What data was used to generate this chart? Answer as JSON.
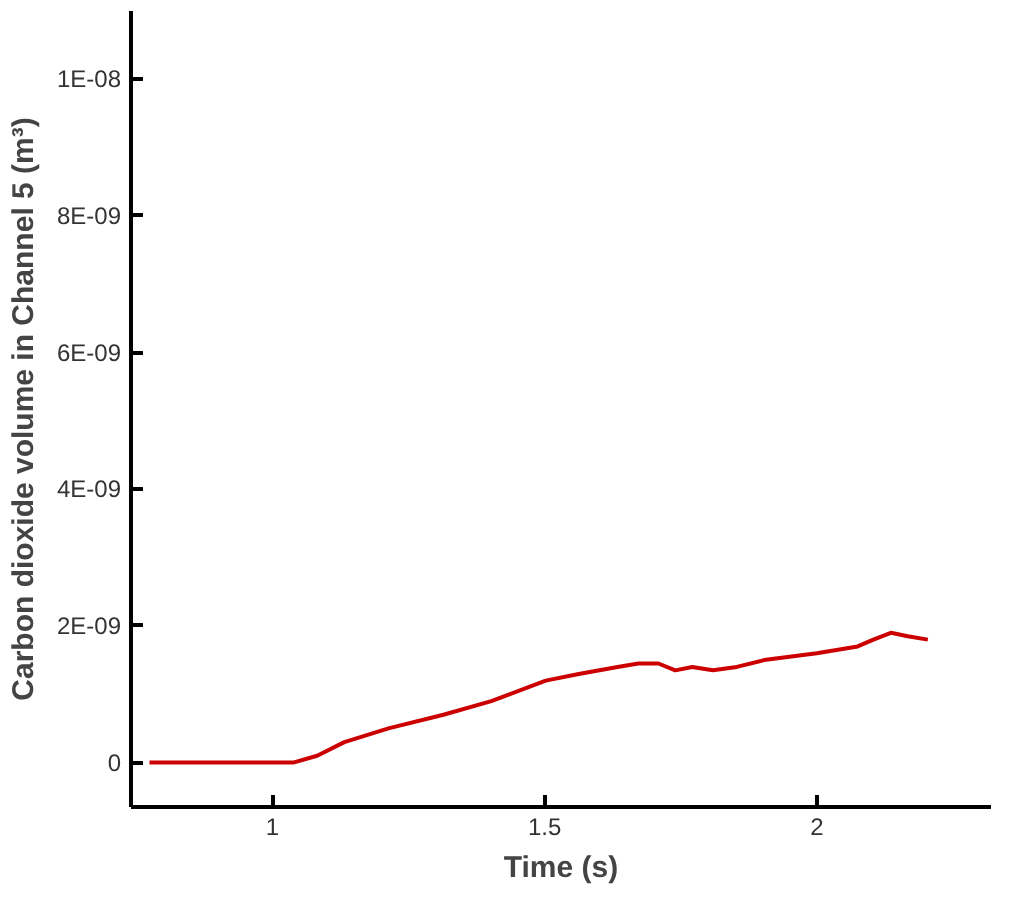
{
  "chart_data": {
    "type": "line",
    "xlabel": "Time (s)",
    "ylabel": "Carbon dioxide volume in Channel 5 (m³)",
    "xlim": [
      0.74,
      2.32
    ],
    "ylim": [
      -6.5e-10,
      1.1e-08
    ],
    "xticks": [
      1,
      1.5,
      2
    ],
    "yticks": [
      0,
      {
        "value": 2e-09,
        "label": "2E-09"
      },
      {
        "value": 4e-09,
        "label": "4E-09"
      },
      {
        "value": 6e-09,
        "label": "6E-09"
      },
      {
        "value": 8e-09,
        "label": "8E-09"
      },
      {
        "value": 1e-08,
        "label": "1E-08"
      }
    ],
    "grid": false,
    "marker": "none",
    "line_style": "solid",
    "series": [
      {
        "color": "#cc0000",
        "x": [
          0.774,
          1.0,
          1.038,
          1.082,
          1.132,
          1.213,
          1.314,
          1.402,
          1.502,
          1.565,
          1.634,
          1.672,
          1.709,
          1.74,
          1.771,
          1.809,
          1.853,
          1.903,
          2.0,
          2.075,
          2.104,
          2.136,
          2.167,
          2.204
        ],
        "values": [
          0,
          0,
          0,
          1e-10,
          3e-10,
          5e-10,
          7e-10,
          9e-10,
          1.2e-09,
          1.3e-09,
          1.4e-09,
          1.45e-09,
          1.45e-09,
          1.35e-09,
          1.4e-09,
          1.35e-09,
          1.4e-09,
          1.5e-09,
          1.6e-09,
          1.7e-09,
          1.8e-09,
          1.9e-09,
          1.85e-09,
          1.8e-09
        ]
      }
    ]
  }
}
